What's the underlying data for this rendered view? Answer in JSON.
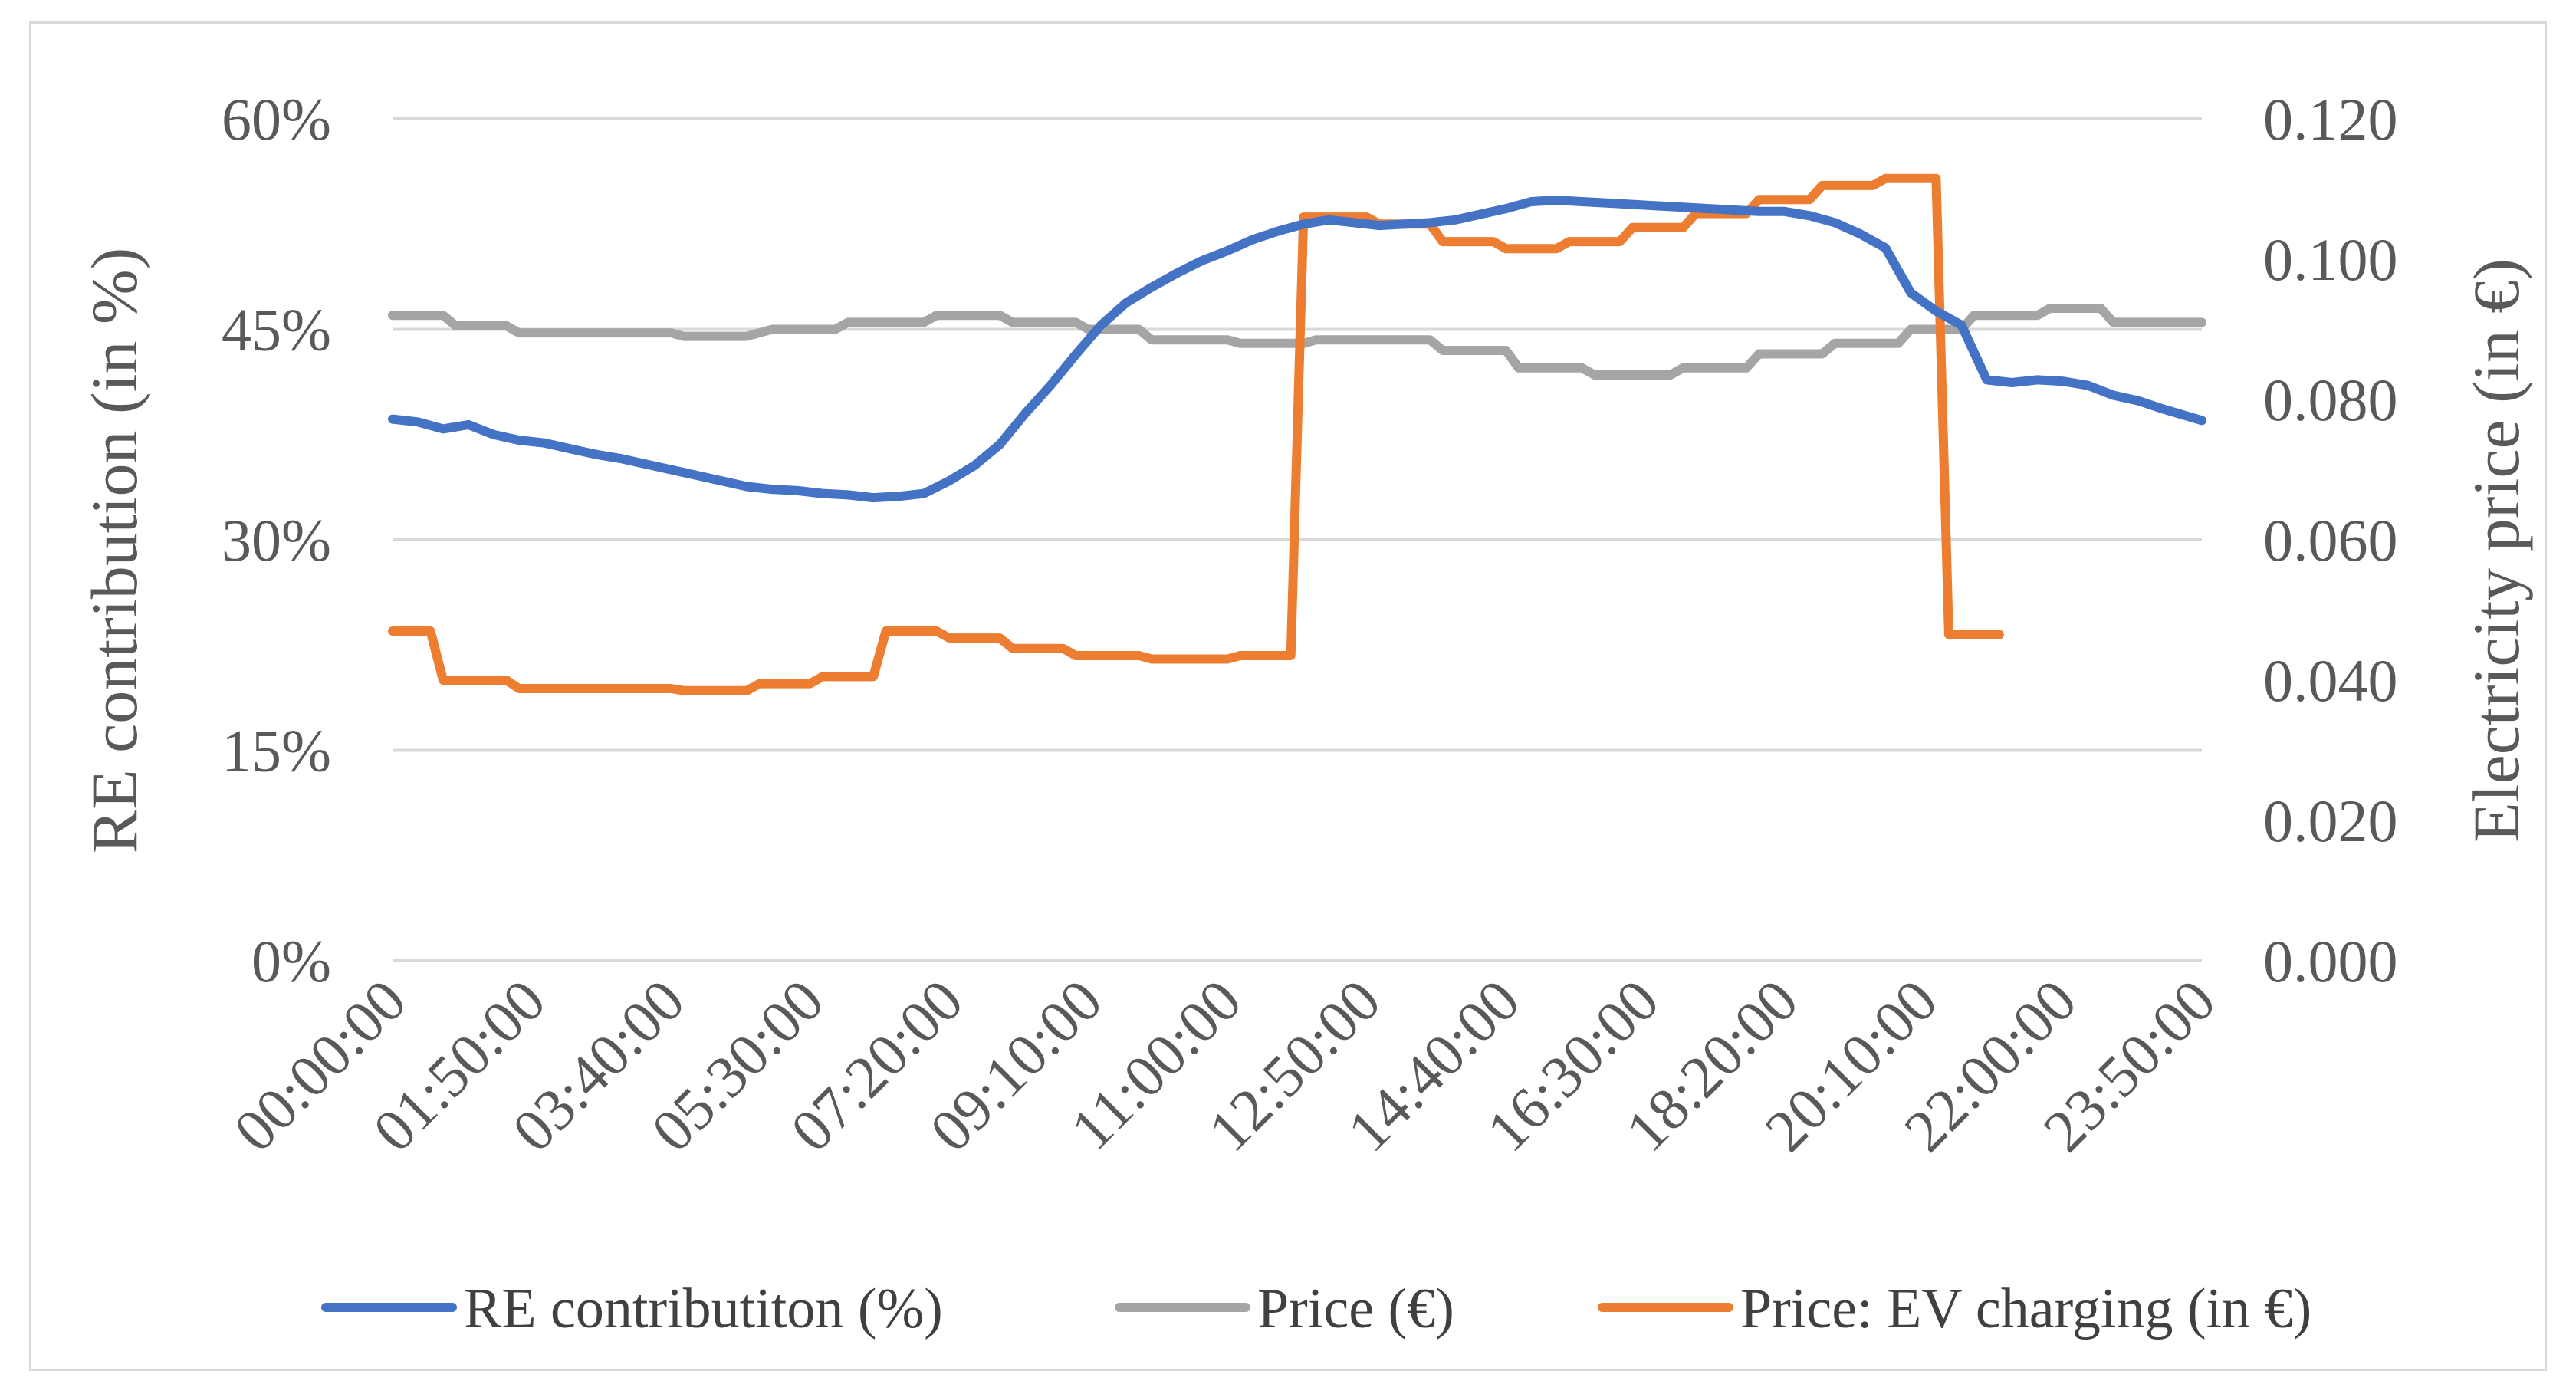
{
  "chart_data": {
    "type": "line",
    "title": "",
    "ylabel": "RE contribution (in %)",
    "ylabel_right": "Electricity price (in €)",
    "xlabel": "",
    "ylim": [
      0,
      60
    ],
    "ylim_right": [
      0,
      0.12
    ],
    "y_ticks": [
      "0%",
      "15%",
      "30%",
      "45%",
      "60%"
    ],
    "y_ticks_right": [
      "0.000",
      "0.020",
      "0.040",
      "0.060",
      "0.080",
      "0.100",
      "0.120"
    ],
    "x_ticks": [
      "00:00:00",
      "01:50:00",
      "03:40:00",
      "05:30:00",
      "07:20:00",
      "09:10:00",
      "11:00:00",
      "12:50:00",
      "14:40:00",
      "16:30:00",
      "18:20:00",
      "20:10:00",
      "22:00:00",
      "23:50:00"
    ],
    "x_range_minutes": [
      0,
      1430
    ],
    "grid": "horizontal",
    "legend_position": "bottom",
    "colors": {
      "re": "#4472c4",
      "price": "#a5a5a5",
      "ev": "#ed7d31"
    },
    "series": [
      {
        "name": "RE contributiton (%)",
        "axis": "left",
        "color": "#4472c4",
        "points": [
          [
            "00:00",
            38.6
          ],
          [
            "00:20",
            38.4
          ],
          [
            "00:40",
            37.9
          ],
          [
            "01:00",
            38.2
          ],
          [
            "01:20",
            37.5
          ],
          [
            "01:40",
            37.1
          ],
          [
            "02:00",
            36.9
          ],
          [
            "02:20",
            36.5
          ],
          [
            "02:40",
            36.1
          ],
          [
            "03:00",
            35.8
          ],
          [
            "03:20",
            35.4
          ],
          [
            "03:40",
            35.0
          ],
          [
            "04:00",
            34.6
          ],
          [
            "04:20",
            34.2
          ],
          [
            "04:40",
            33.8
          ],
          [
            "05:00",
            33.6
          ],
          [
            "05:20",
            33.5
          ],
          [
            "05:40",
            33.3
          ],
          [
            "06:00",
            33.2
          ],
          [
            "06:20",
            33.0
          ],
          [
            "06:40",
            33.1
          ],
          [
            "07:00",
            33.3
          ],
          [
            "07:20",
            34.2
          ],
          [
            "07:40",
            35.3
          ],
          [
            "08:00",
            36.8
          ],
          [
            "08:20",
            39.0
          ],
          [
            "08:40",
            41.0
          ],
          [
            "09:00",
            43.2
          ],
          [
            "09:20",
            45.3
          ],
          [
            "09:40",
            46.9
          ],
          [
            "10:00",
            48.0
          ],
          [
            "10:20",
            49.0
          ],
          [
            "10:40",
            49.9
          ],
          [
            "11:00",
            50.6
          ],
          [
            "11:20",
            51.4
          ],
          [
            "11:40",
            52.0
          ],
          [
            "12:00",
            52.5
          ],
          [
            "12:20",
            52.8
          ],
          [
            "12:40",
            52.6
          ],
          [
            "13:00",
            52.4
          ],
          [
            "13:20",
            52.5
          ],
          [
            "13:40",
            52.6
          ],
          [
            "14:00",
            52.8
          ],
          [
            "14:20",
            53.2
          ],
          [
            "14:40",
            53.6
          ],
          [
            "15:00",
            54.1
          ],
          [
            "15:20",
            54.2
          ],
          [
            "15:40",
            54.1
          ],
          [
            "16:00",
            54.0
          ],
          [
            "16:20",
            53.9
          ],
          [
            "16:40",
            53.8
          ],
          [
            "17:00",
            53.7
          ],
          [
            "17:20",
            53.6
          ],
          [
            "17:40",
            53.5
          ],
          [
            "18:00",
            53.4
          ],
          [
            "18:20",
            53.4
          ],
          [
            "18:40",
            53.1
          ],
          [
            "19:00",
            52.6
          ],
          [
            "19:20",
            51.8
          ],
          [
            "19:40",
            50.8
          ],
          [
            "20:00",
            47.6
          ],
          [
            "20:20",
            46.3
          ],
          [
            "20:40",
            45.3
          ],
          [
            "21:00",
            41.4
          ],
          [
            "21:20",
            41.2
          ],
          [
            "21:40",
            41.4
          ],
          [
            "22:00",
            41.3
          ],
          [
            "22:20",
            41.0
          ],
          [
            "22:40",
            40.3
          ],
          [
            "23:00",
            39.9
          ],
          [
            "23:20",
            39.3
          ],
          [
            "23:50",
            38.5
          ]
        ]
      },
      {
        "name": "Price (€)",
        "axis": "right",
        "color": "#a5a5a5",
        "points": [
          [
            "00:00",
            0.092
          ],
          [
            "00:40",
            0.092
          ],
          [
            "00:50",
            0.0905
          ],
          [
            "01:30",
            0.0905
          ],
          [
            "01:40",
            0.0895
          ],
          [
            "03:40",
            0.0895
          ],
          [
            "03:50",
            0.089
          ],
          [
            "04:40",
            0.089
          ],
          [
            "05:00",
            0.09
          ],
          [
            "05:50",
            0.09
          ],
          [
            "06:00",
            0.091
          ],
          [
            "07:00",
            0.091
          ],
          [
            "07:10",
            0.092
          ],
          [
            "08:00",
            0.092
          ],
          [
            "08:10",
            0.091
          ],
          [
            "09:00",
            0.091
          ],
          [
            "09:10",
            0.09
          ],
          [
            "09:50",
            0.09
          ],
          [
            "10:00",
            0.0885
          ],
          [
            "11:00",
            0.0885
          ],
          [
            "11:10",
            0.088
          ],
          [
            "12:00",
            0.088
          ],
          [
            "12:10",
            0.0885
          ],
          [
            "13:40",
            0.0885
          ],
          [
            "13:50",
            0.087
          ],
          [
            "14:40",
            0.087
          ],
          [
            "14:50",
            0.0845
          ],
          [
            "15:40",
            0.0845
          ],
          [
            "15:50",
            0.0835
          ],
          [
            "16:50",
            0.0835
          ],
          [
            "17:00",
            0.0845
          ],
          [
            "17:50",
            0.0845
          ],
          [
            "18:00",
            0.0865
          ],
          [
            "18:50",
            0.0865
          ],
          [
            "19:00",
            0.088
          ],
          [
            "19:50",
            0.088
          ],
          [
            "20:00",
            0.09
          ],
          [
            "20:40",
            0.09
          ],
          [
            "20:50",
            0.092
          ],
          [
            "21:40",
            0.092
          ],
          [
            "21:50",
            0.093
          ],
          [
            "22:30",
            0.093
          ],
          [
            "22:40",
            0.091
          ],
          [
            "23:50",
            0.091
          ]
        ]
      },
      {
        "name": "Price: EV charging (in €)",
        "axis": "right",
        "color": "#ed7d31",
        "points": [
          [
            "00:00",
            0.047
          ],
          [
            "00:30",
            0.047
          ],
          [
            "00:40",
            0.04
          ],
          [
            "01:30",
            0.04
          ],
          [
            "01:40",
            0.0388
          ],
          [
            "03:40",
            0.0388
          ],
          [
            "03:50",
            0.0385
          ],
          [
            "04:40",
            0.0385
          ],
          [
            "04:50",
            0.0395
          ],
          [
            "05:30",
            0.0395
          ],
          [
            "05:40",
            0.0405
          ],
          [
            "06:20",
            0.0405
          ],
          [
            "06:30",
            0.047
          ],
          [
            "07:10",
            0.047
          ],
          [
            "07:20",
            0.046
          ],
          [
            "08:00",
            0.046
          ],
          [
            "08:10",
            0.0445
          ],
          [
            "08:50",
            0.0445
          ],
          [
            "09:00",
            0.0435
          ],
          [
            "09:50",
            0.0435
          ],
          [
            "10:00",
            0.043
          ],
          [
            "11:00",
            0.043
          ],
          [
            "11:10",
            0.0435
          ],
          [
            "11:50",
            0.0435
          ],
          [
            "12:00",
            0.106
          ],
          [
            "12:50",
            0.106
          ],
          [
            "13:00",
            0.105
          ],
          [
            "13:40",
            0.105
          ],
          [
            "13:50",
            0.1025
          ],
          [
            "14:30",
            0.1025
          ],
          [
            "14:40",
            0.1015
          ],
          [
            "15:20",
            0.1015
          ],
          [
            "15:30",
            0.1025
          ],
          [
            "16:10",
            0.1025
          ],
          [
            "16:20",
            0.1045
          ],
          [
            "17:00",
            0.1045
          ],
          [
            "17:10",
            0.1065
          ],
          [
            "17:50",
            0.1065
          ],
          [
            "18:00",
            0.1085
          ],
          [
            "18:40",
            0.1085
          ],
          [
            "18:50",
            0.1105
          ],
          [
            "19:30",
            0.1105
          ],
          [
            "19:40",
            0.1115
          ],
          [
            "20:20",
            0.1115
          ],
          [
            "20:30",
            0.0465
          ],
          [
            "21:10",
            0.0465
          ]
        ]
      }
    ]
  }
}
